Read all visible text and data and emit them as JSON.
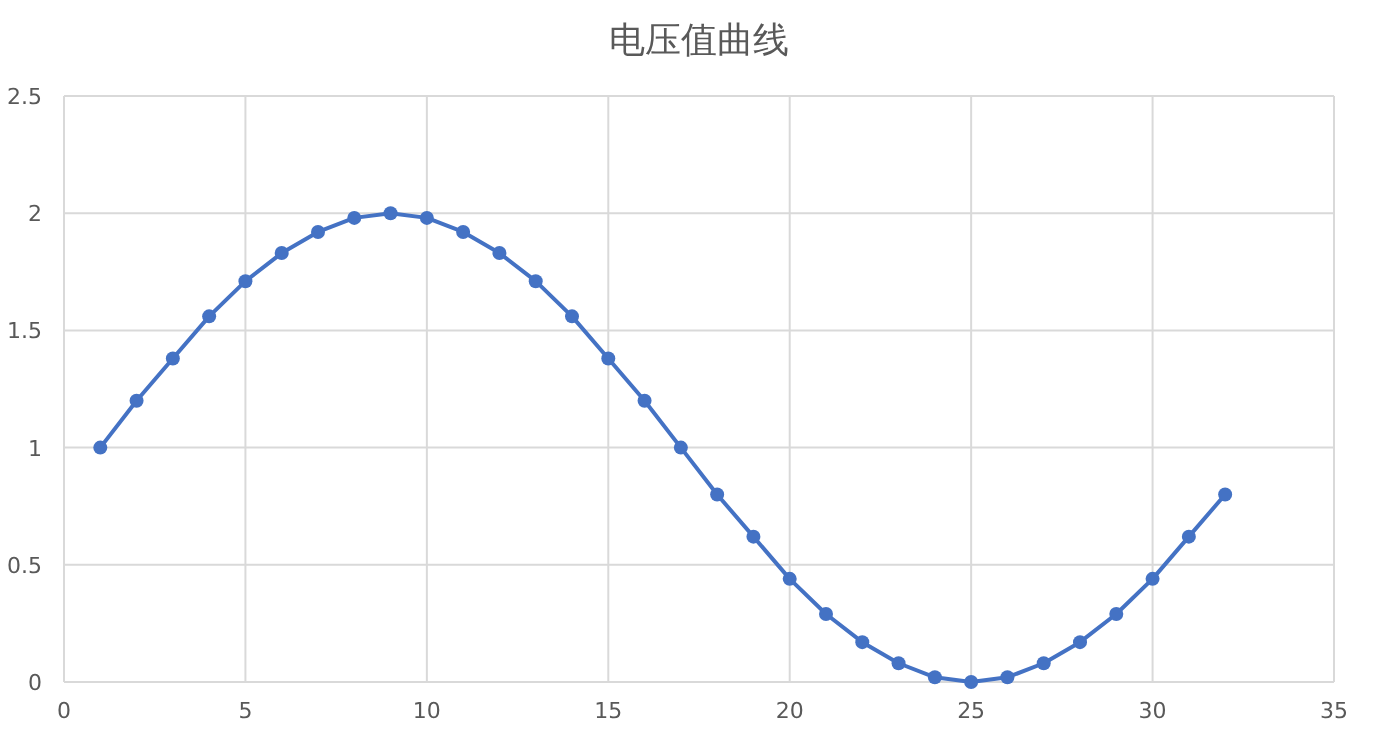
{
  "chart_data": {
    "type": "line",
    "title": "电压值曲线",
    "x": [
      1,
      2,
      3,
      4,
      5,
      6,
      7,
      8,
      9,
      10,
      11,
      12,
      13,
      14,
      15,
      16,
      17,
      18,
      19,
      20,
      21,
      22,
      23,
      24,
      25,
      26,
      27,
      28,
      29,
      30,
      31,
      32
    ],
    "series": [
      {
        "color": "#4472c4",
        "values": [
          1,
          1.2,
          1.38,
          1.56,
          1.71,
          1.83,
          1.92,
          1.98,
          2,
          1.98,
          1.92,
          1.83,
          1.71,
          1.56,
          1.38,
          1.2,
          1,
          0.8,
          0.62,
          0.44,
          0.29,
          0.17,
          0.08,
          0.02,
          0,
          0.02,
          0.08,
          0.17,
          0.29,
          0.44,
          0.62,
          0.8
        ]
      }
    ],
    "xlim": [
      0,
      35
    ],
    "ylim": [
      0,
      2.5
    ],
    "xticks": [
      0,
      5,
      10,
      15,
      20,
      25,
      30,
      35
    ],
    "yticks": [
      0,
      0.5,
      1,
      1.5,
      2,
      2.5
    ],
    "grid": true,
    "marker": "circle",
    "line_style": "solid"
  }
}
